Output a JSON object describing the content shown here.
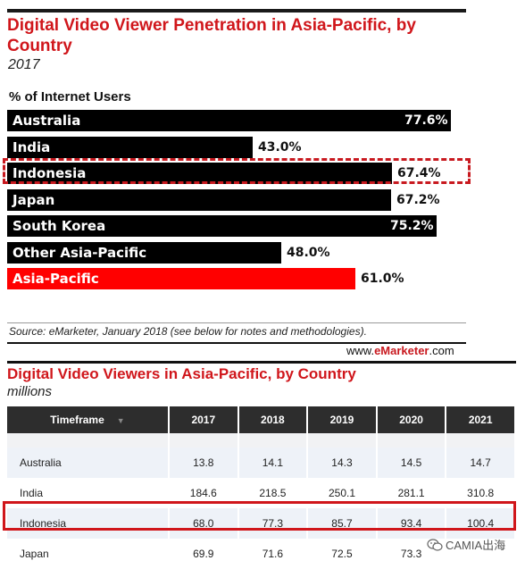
{
  "chart1": {
    "title": "Digital Video Viewer Penetration in Asia-Pacific, by Country",
    "subtitle": "2017",
    "unit_label": "% of Internet Users",
    "source": "Source: eMarketer, January 2018 (see below for notes and methodologies).",
    "brand_prefix": "www.",
    "brand_name": "eMarketer",
    "brand_suffix": ".com"
  },
  "chart_data": [
    {
      "type": "bar",
      "orientation": "horizontal",
      "title": "Digital Video Viewer Penetration in Asia-Pacific, by Country",
      "subtitle": "2017",
      "ylabel": "% of Internet Users",
      "categories": [
        "Australia",
        "India",
        "Indonesia",
        "Japan",
        "South Korea",
        "Other Asia-Pacific",
        "Asia-Pacific"
      ],
      "values": [
        77.6,
        43.0,
        67.4,
        67.2,
        75.2,
        48.0,
        61.0
      ],
      "value_labels": [
        "77.6%",
        "43.0%",
        "67.4%",
        "67.2%",
        "75.2%",
        "48.0%",
        "61.0%"
      ],
      "colors": [
        "#000000",
        "#000000",
        "#000000",
        "#000000",
        "#000000",
        "#000000",
        "#ff0000"
      ],
      "highlight": "Indonesia",
      "xlim": [
        0,
        80
      ]
    },
    {
      "type": "table",
      "title": "Digital Video Viewers in Asia-Pacific, by Country",
      "subtitle": "millions",
      "columns": [
        "Timeframe",
        "2017",
        "2018",
        "2019",
        "2020",
        "2021"
      ],
      "rows": [
        [
          "Australia",
          "13.8",
          "14.1",
          "14.3",
          "14.5",
          "14.7"
        ],
        [
          "India",
          "184.6",
          "218.5",
          "250.1",
          "281.1",
          "310.8"
        ],
        [
          "Indonesia",
          "68.0",
          "77.3",
          "85.7",
          "93.4",
          "100.4"
        ],
        [
          "Japan",
          "69.9",
          "71.6",
          "72.5",
          "73.3",
          ""
        ]
      ],
      "highlight": "Indonesia"
    }
  ],
  "table": {
    "title": "Digital Video Viewers in Asia-Pacific, by Country",
    "subtitle": "millions",
    "header_first": "Timeframe",
    "years": [
      "2017",
      "2018",
      "2019",
      "2020",
      "2021"
    ]
  },
  "watermark": {
    "text": "CAMIA出海",
    "icon": "wechat-icon"
  },
  "colors": {
    "accent": "#d0161b",
    "bar": "#000000",
    "highlight_bar": "#ff0000"
  }
}
